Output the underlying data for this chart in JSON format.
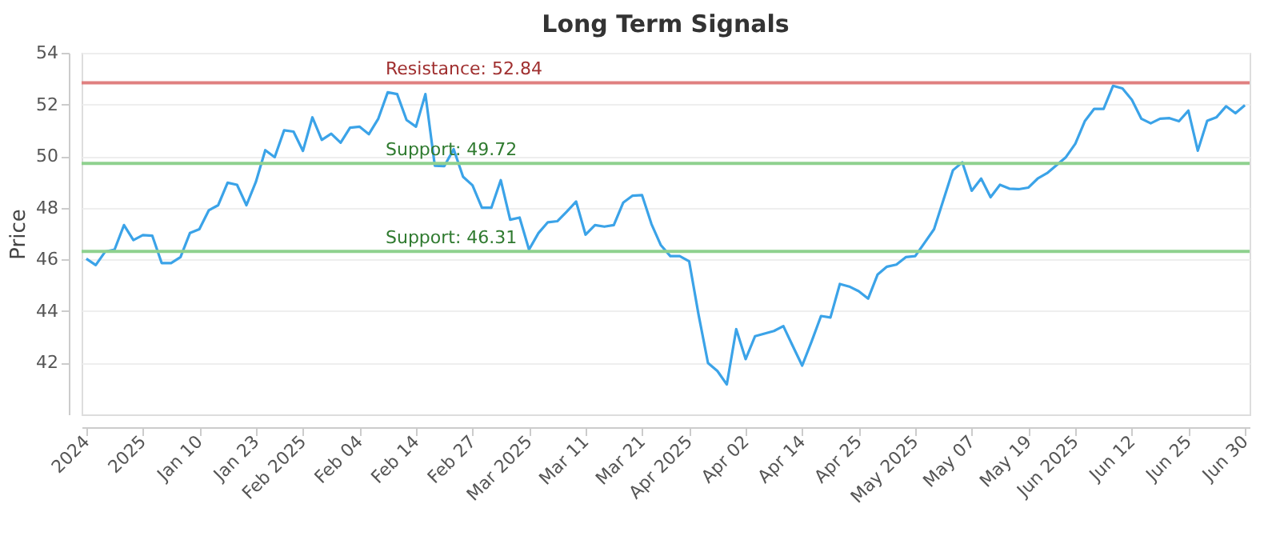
{
  "chart_data": {
    "type": "line",
    "title": "Long Term Signals",
    "ylabel": "Price",
    "categories": [
      "2024",
      null,
      null,
      null,
      null,
      null,
      "2025",
      null,
      null,
      null,
      null,
      null,
      "Jan 10",
      null,
      null,
      null,
      null,
      null,
      "Jan 23",
      null,
      null,
      null,
      null,
      "Feb 2025",
      null,
      null,
      null,
      null,
      null,
      "Feb 04",
      null,
      null,
      null,
      null,
      null,
      "Feb 14",
      null,
      null,
      null,
      null,
      null,
      "Feb 27",
      null,
      null,
      null,
      null,
      null,
      "Mar 2025",
      null,
      null,
      null,
      null,
      null,
      "Mar 11",
      null,
      null,
      null,
      null,
      null,
      "Mar 21",
      null,
      null,
      null,
      null,
      "Apr 2025",
      null,
      null,
      null,
      null,
      null,
      "Apr 02",
      null,
      null,
      null,
      null,
      null,
      "Apr 14",
      null,
      null,
      null,
      null,
      null,
      "Apr 25",
      null,
      null,
      null,
      null,
      null,
      "May 2025",
      null,
      null,
      null,
      null,
      null,
      "May 07",
      null,
      null,
      null,
      null,
      null,
      "May 19",
      null,
      null,
      null,
      null,
      "Jun 2025",
      null,
      null,
      null,
      null,
      null,
      "Jun 12",
      null,
      null,
      null,
      null,
      null,
      "Jun 25",
      null,
      null,
      null,
      null,
      null,
      "Jun 30"
    ],
    "series": [
      {
        "color": "#3ba3e8",
        "values": [
          46.03,
          45.78,
          46.3,
          46.38,
          47.33,
          46.75,
          46.94,
          46.92,
          45.86,
          45.86,
          46.09,
          47.02,
          47.17,
          47.9,
          48.1,
          48.97,
          48.89,
          48.1,
          49.0,
          50.23,
          49.96,
          51.0,
          50.95,
          50.2,
          51.5,
          50.63,
          50.87,
          50.52,
          51.1,
          51.14,
          50.85,
          51.45,
          52.47,
          52.4,
          51.4,
          51.14,
          52.4,
          49.63,
          49.61,
          50.27,
          49.2,
          48.87,
          48.0,
          48.0,
          49.07,
          47.54,
          47.62,
          46.38,
          47.02,
          47.44,
          47.48,
          47.85,
          48.24,
          46.96,
          47.33,
          47.27,
          47.33,
          48.2,
          48.47,
          48.49,
          47.37,
          46.55,
          46.13,
          46.13,
          45.93,
          43.86,
          41.99,
          41.68,
          41.16,
          43.3,
          42.14,
          43.03,
          43.13,
          43.23,
          43.42,
          42.65,
          41.89,
          42.82,
          43.81,
          43.75,
          45.05,
          44.95,
          44.77,
          44.48,
          45.41,
          45.72,
          45.8,
          46.09,
          46.13,
          46.65,
          47.17,
          48.31,
          49.45,
          49.76,
          48.66,
          49.13,
          48.41,
          48.89,
          48.74,
          48.72,
          48.78,
          49.13,
          49.34,
          49.65,
          49.96,
          50.48,
          51.35,
          51.83,
          51.83,
          52.72,
          52.62,
          52.18,
          51.45,
          51.27,
          51.45,
          51.47,
          51.35,
          51.76,
          50.21,
          51.37,
          51.51,
          51.93,
          51.66,
          51.97
        ]
      }
    ],
    "ylim": [
      40,
      54
    ],
    "yticks": [
      42,
      44,
      46,
      48,
      50,
      52,
      54
    ],
    "grid": "y",
    "marker": "none",
    "line_style": "solid",
    "ref_lines": [
      {
        "axis": "y",
        "value": 52.84,
        "label": "Resistance: 52.84",
        "color": "#e08080"
      },
      {
        "axis": "y",
        "value": 49.72,
        "label": "Support: 49.72",
        "color": "#8fd18f"
      },
      {
        "axis": "y",
        "value": 46.31,
        "label": "Support: 46.31",
        "color": "#8fd18f"
      }
    ]
  }
}
